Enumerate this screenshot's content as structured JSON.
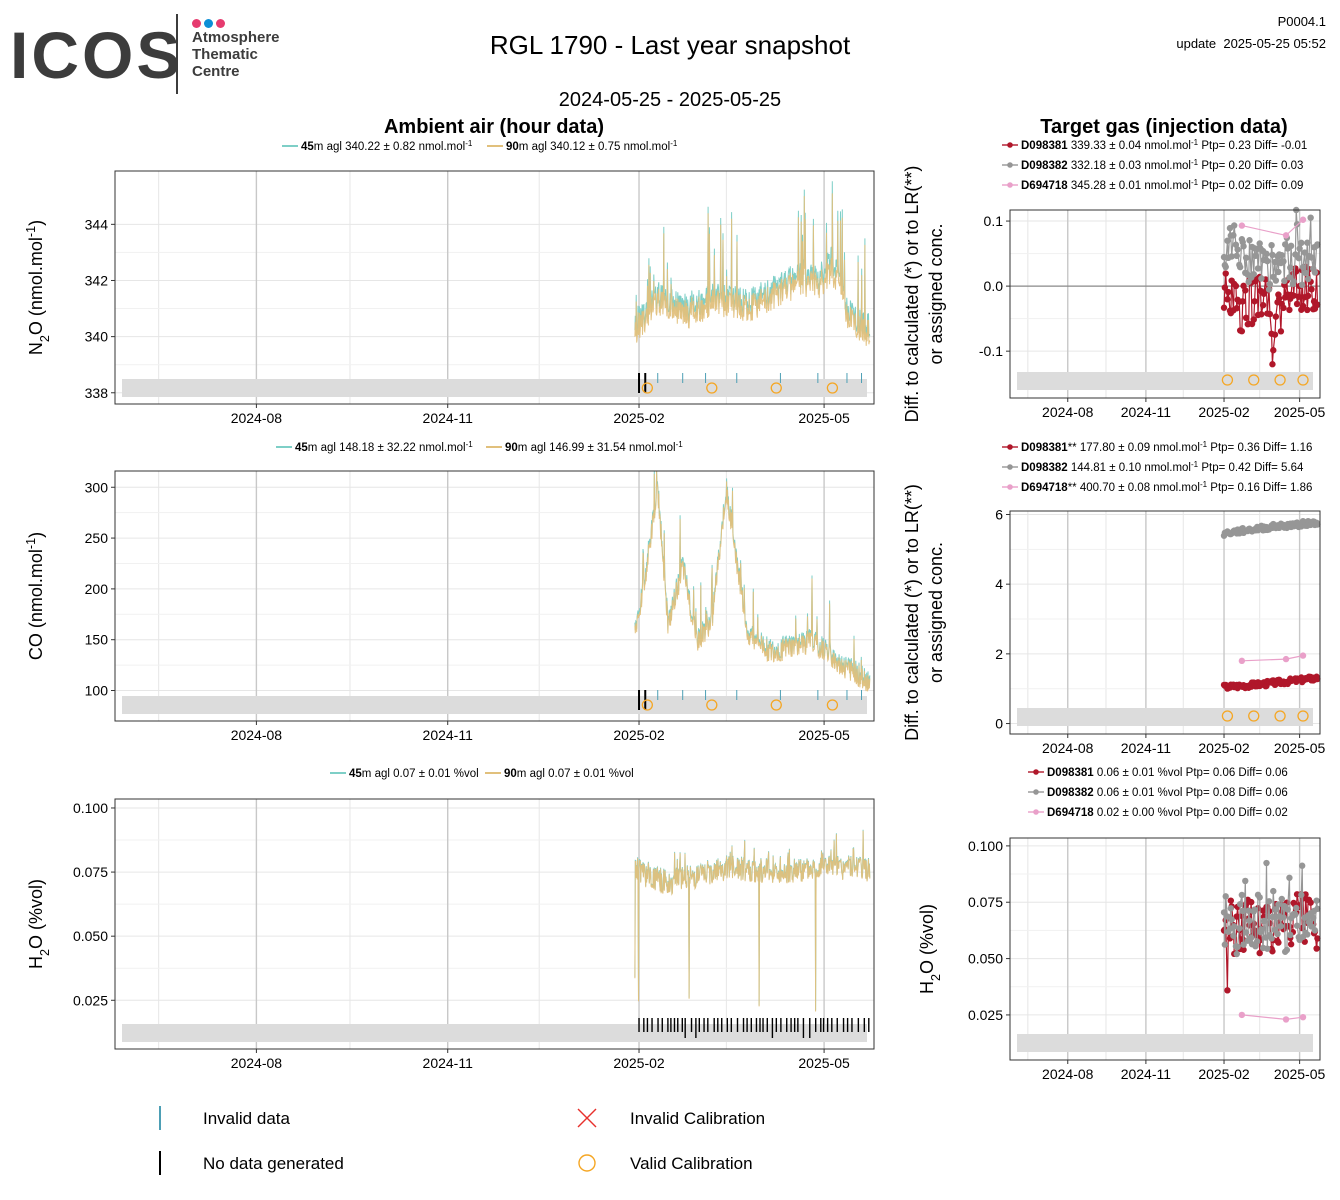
{
  "header": {
    "logo_text": "ICOS",
    "logo_sub": [
      "Atmosphere",
      "Thematic",
      "Centre"
    ],
    "title": "RGL 1790 - Last year snapshot",
    "date_range": "2024-05-25 - 2025-05-25",
    "code": "P0004.1",
    "update": "update  2025-05-25 05:52"
  },
  "colors": {
    "s45": "#7ecfc7",
    "s90": "#e1c07c",
    "D098381": "#b0172a",
    "D098382": "#969696",
    "D694718": "#e9a0c9",
    "band": "#dcdcdc",
    "grid": "#e6e6e6",
    "gridMajor": "#c8c8c8",
    "calib_ok": "#f5a623",
    "calib_bad": "#e8302c"
  },
  "sections": {
    "ambient_title": "Ambient air (hour data)",
    "target_title": "Target gas (injection data)"
  },
  "x_ticks": [
    "2024-08",
    "2024-11",
    "2025-02",
    "2025-05"
  ],
  "chart_data": [
    {
      "type": "line",
      "id": "n2o_ambient",
      "ylabel": "N2O (nmol.mol-1)",
      "ylabel_parts": [
        "N",
        "2",
        "O (nmol.mol",
        "-1",
        ")"
      ],
      "ylim": [
        337.6,
        345.9
      ],
      "yticks": [
        "338",
        "340",
        "342",
        "344"
      ],
      "ytick_values": [
        338,
        340,
        342,
        344
      ],
      "legend": [
        {
          "bold": "45",
          "text": "m agl 340.22 ± 0.82 nmol.mol",
          "sup": "-1"
        },
        {
          "bold": "90",
          "text": "m agl 340.12 ± 0.75 nmol.mol",
          "sup": "-1"
        }
      ],
      "series": [
        {
          "name": "45m agl",
          "x": [
            "2025-01-30",
            "2025-02-10",
            "2025-02-25",
            "2025-03-10",
            "2025-03-25",
            "2025-04-10",
            "2025-04-20",
            "2025-04-28",
            "2025-05-05",
            "2025-05-12",
            "2025-05-20"
          ],
          "y": [
            340.4,
            341.5,
            341.0,
            341.5,
            341.2,
            341.8,
            342.2,
            342.0,
            342.8,
            341.0,
            340.4
          ]
        },
        {
          "name": "90m agl",
          "x": [
            "2025-01-30",
            "2025-02-10",
            "2025-02-25",
            "2025-03-10",
            "2025-03-25",
            "2025-04-10",
            "2025-04-20",
            "2025-04-28",
            "2025-05-05",
            "2025-05-12",
            "2025-05-20"
          ],
          "y": [
            340.2,
            341.3,
            340.8,
            341.3,
            341.0,
            341.6,
            342.0,
            341.8,
            342.4,
            340.8,
            340.2
          ]
        }
      ],
      "valid_calibrations": [
        "2025-02-05",
        "2025-03-08",
        "2025-04-08",
        "2025-05-05"
      ]
    },
    {
      "type": "line",
      "id": "co_ambient",
      "ylabel": "CO (nmol.mol-1)",
      "ylabel_parts": [
        "CO (nmol.mol",
        "-1",
        ")"
      ],
      "ylim": [
        70,
        316
      ],
      "yticks": [
        "100",
        "150",
        "200",
        "250",
        "300"
      ],
      "ytick_values": [
        100,
        150,
        200,
        250,
        300
      ],
      "legend": [
        {
          "bold": "45",
          "text": "m agl 148.18 ± 32.22 nmol.mol",
          "sup": "-1"
        },
        {
          "bold": "90",
          "text": "m agl 146.99 ± 31.54 nmol.mol",
          "sup": "-1"
        }
      ],
      "series": [
        {
          "name": "45m agl",
          "x": [
            "2025-01-30",
            "2025-02-04",
            "2025-02-10",
            "2025-02-15",
            "2025-02-22",
            "2025-03-01",
            "2025-03-08",
            "2025-03-15",
            "2025-03-25",
            "2025-04-05",
            "2025-04-15",
            "2025-04-25",
            "2025-05-05",
            "2025-05-15",
            "2025-05-23"
          ],
          "y": [
            160,
            215,
            300,
            165,
            225,
            150,
            170,
            300,
            160,
            140,
            145,
            150,
            135,
            120,
            110
          ]
        },
        {
          "name": "90m agl",
          "x": [
            "2025-01-30",
            "2025-02-04",
            "2025-02-10",
            "2025-02-15",
            "2025-02-22",
            "2025-03-01",
            "2025-03-08",
            "2025-03-15",
            "2025-03-25",
            "2025-04-05",
            "2025-04-15",
            "2025-04-25",
            "2025-05-05",
            "2025-05-15",
            "2025-05-23"
          ],
          "y": [
            158,
            212,
            298,
            163,
            222,
            148,
            168,
            298,
            158,
            138,
            143,
            148,
            133,
            118,
            108
          ]
        }
      ],
      "valid_calibrations": [
        "2025-02-05",
        "2025-03-08",
        "2025-04-08",
        "2025-05-05"
      ]
    },
    {
      "type": "line",
      "id": "h2o_ambient",
      "ylabel": "H2O (%vol)",
      "ylabel_parts": [
        "H",
        "2",
        "O (%vol)"
      ],
      "ylim": [
        0.006,
        0.1035
      ],
      "yticks": [
        "0.025",
        "0.050",
        "0.075",
        "0.100"
      ],
      "ytick_values": [
        0.025,
        0.05,
        0.075,
        0.1
      ],
      "legend": [
        {
          "bold": "45",
          "text": "m agl 0.07 ± 0.01 %vol",
          "sup": ""
        },
        {
          "bold": "90",
          "text": "m agl 0.07 ± 0.01 %vol",
          "sup": ""
        }
      ],
      "series": [
        {
          "name": "45m agl",
          "x": [
            "2025-01-30",
            "2025-02-03",
            "2025-02-15",
            "2025-03-01",
            "2025-03-15",
            "2025-04-01",
            "2025-04-15",
            "2025-05-01",
            "2025-05-10",
            "2025-05-23"
          ],
          "y": [
            0.078,
            0.074,
            0.071,
            0.074,
            0.077,
            0.076,
            0.075,
            0.079,
            0.077,
            0.076
          ]
        },
        {
          "name": "90m agl",
          "x": [
            "2025-01-30",
            "2025-02-03",
            "2025-02-15",
            "2025-03-01",
            "2025-03-15",
            "2025-04-01",
            "2025-04-15",
            "2025-05-01",
            "2025-05-10",
            "2025-05-23"
          ],
          "y": [
            0.078,
            0.074,
            0.071,
            0.074,
            0.077,
            0.076,
            0.075,
            0.079,
            0.077,
            0.076
          ]
        }
      ]
    },
    {
      "type": "scatter",
      "id": "n2o_target",
      "ylabel_lines": [
        "Diff. to calculated (*) or to LR(**)",
        "or assigned conc."
      ],
      "ylim": [
        -0.172,
        0.117
      ],
      "yticks": [
        "-0.1",
        "0.0",
        "0.1"
      ],
      "ytick_values": [
        -0.1,
        0.0,
        0.1
      ],
      "legend": [
        {
          "color": "D098381",
          "bold": "D098381",
          "text": " 339.33 ± 0.04 nmol.mol",
          "sup": "-1",
          "tail": " Ptp= 0.23 Diff= -0.01"
        },
        {
          "color": "D098382",
          "bold": "D098382",
          "text": " 332.18 ± 0.03 nmol.mol",
          "sup": "-1",
          "tail": " Ptp= 0.20 Diff= 0.03"
        },
        {
          "color": "D694718",
          "bold": "D694718",
          "text": " 345.28 ± 0.01 nmol.mol",
          "sup": "-1",
          "tail": " Ptp= 0.02 Diff= 0.09"
        }
      ],
      "series": [
        {
          "name": "D098381",
          "x": [
            "2025-02-01",
            "2025-02-15",
            "2025-03-01",
            "2025-03-15",
            "2025-04-01",
            "2025-04-15",
            "2025-05-01",
            "2025-05-15"
          ],
          "y": [
            -0.02,
            0.0,
            -0.03,
            -0.01,
            -0.05,
            -0.02,
            0.0,
            -0.01
          ]
        },
        {
          "name": "D098382",
          "x": [
            "2025-02-01",
            "2025-02-15",
            "2025-03-01",
            "2025-03-15",
            "2025-04-01",
            "2025-04-15",
            "2025-05-01",
            "2025-05-15"
          ],
          "y": [
            0.04,
            0.06,
            0.03,
            0.05,
            0.02,
            0.04,
            0.03,
            0.05
          ]
        },
        {
          "name": "D694718",
          "x": [
            "2025-02-22",
            "2025-04-15",
            "2025-05-05"
          ],
          "y": [
            0.093,
            0.078,
            0.102
          ]
        }
      ],
      "valid_calibrations": [
        "2025-02-05",
        "2025-03-08",
        "2025-04-08",
        "2025-05-05"
      ]
    },
    {
      "type": "scatter",
      "id": "co_target",
      "ylabel_lines": [
        "Diff. to calculated (*) or to LR(**)",
        "or assigned conc."
      ],
      "ylim": [
        -0.3,
        6.1
      ],
      "yticks": [
        "0",
        "2",
        "4",
        "6"
      ],
      "ytick_values": [
        0,
        2,
        4,
        6
      ],
      "legend": [
        {
          "color": "D098381",
          "bold": "D098381",
          "text": "** 177.80 ± 0.09 nmol.mol",
          "sup": "-1",
          "tail": " Ptp= 0.36 Diff= 1.16"
        },
        {
          "color": "D098382",
          "bold": "D098382",
          "text": " 144.81 ± 0.10 nmol.mol",
          "sup": "-1",
          "tail": " Ptp= 0.42 Diff= 5.64"
        },
        {
          "color": "D694718",
          "bold": "D694718",
          "text": "** 400.70 ± 0.08 nmol.mol",
          "sup": "-1",
          "tail": " Ptp= 0.16 Diff= 1.86"
        }
      ],
      "series": [
        {
          "name": "D098381",
          "x": [
            "2025-02-01",
            "2025-03-01",
            "2025-04-01",
            "2025-05-01",
            "2025-05-24"
          ],
          "y": [
            1.05,
            1.1,
            1.17,
            1.25,
            1.32
          ]
        },
        {
          "name": "D098382",
          "x": [
            "2025-02-01",
            "2025-03-01",
            "2025-04-01",
            "2025-05-01",
            "2025-05-24"
          ],
          "y": [
            5.45,
            5.55,
            5.65,
            5.72,
            5.78
          ]
        },
        {
          "name": "D694718",
          "x": [
            "2025-02-22",
            "2025-04-15",
            "2025-05-05"
          ],
          "y": [
            1.8,
            1.85,
            1.95
          ]
        }
      ],
      "valid_calibrations": [
        "2025-02-05",
        "2025-03-08",
        "2025-04-08",
        "2025-05-05"
      ]
    },
    {
      "type": "scatter",
      "id": "h2o_target",
      "ylabel": "H2O (%vol)",
      "ylabel_parts": [
        "H",
        "2",
        "O (%vol)"
      ],
      "ylim": [
        0.005,
        0.1035
      ],
      "yticks": [
        "0.025",
        "0.050",
        "0.075",
        "0.100"
      ],
      "ytick_values": [
        0.025,
        0.05,
        0.075,
        0.1
      ],
      "legend": [
        {
          "color": "D098381",
          "bold": "D098381",
          "text": " 0.06 ± 0.01 %vol",
          "sup": "",
          "tail": " Ptp= 0.06 Diff= 0.06"
        },
        {
          "color": "D098382",
          "bold": "D098382",
          "text": " 0.06 ± 0.01 %vol",
          "sup": "",
          "tail": " Ptp= 0.08 Diff= 0.06"
        },
        {
          "color": "D694718",
          "bold": "D694718",
          "text": " 0.02 ± 0.00 %vol",
          "sup": "",
          "tail": " Ptp= 0.00 Diff= 0.02"
        }
      ],
      "series": [
        {
          "name": "D098381",
          "x": [
            "2025-02-01",
            "2025-02-15",
            "2025-03-01",
            "2025-03-15",
            "2025-04-01",
            "2025-04-15",
            "2025-05-01",
            "2025-05-15"
          ],
          "y": [
            0.066,
            0.062,
            0.068,
            0.064,
            0.066,
            0.063,
            0.067,
            0.065
          ]
        },
        {
          "name": "D098382",
          "x": [
            "2025-02-01",
            "2025-02-15",
            "2025-03-01",
            "2025-03-15",
            "2025-04-01",
            "2025-04-15",
            "2025-05-01",
            "2025-05-15"
          ],
          "y": [
            0.068,
            0.064,
            0.07,
            0.066,
            0.068,
            0.065,
            0.069,
            0.067
          ]
        },
        {
          "name": "D694718",
          "x": [
            "2025-02-22",
            "2025-04-15",
            "2025-05-05"
          ],
          "y": [
            0.025,
            0.023,
            0.024
          ]
        }
      ]
    }
  ],
  "bottom_legend": {
    "invalid_data": "Invalid data",
    "no_data": "No data generated",
    "invalid_calibration": "Invalid Calibration",
    "valid_calibration": "Valid Calibration"
  }
}
